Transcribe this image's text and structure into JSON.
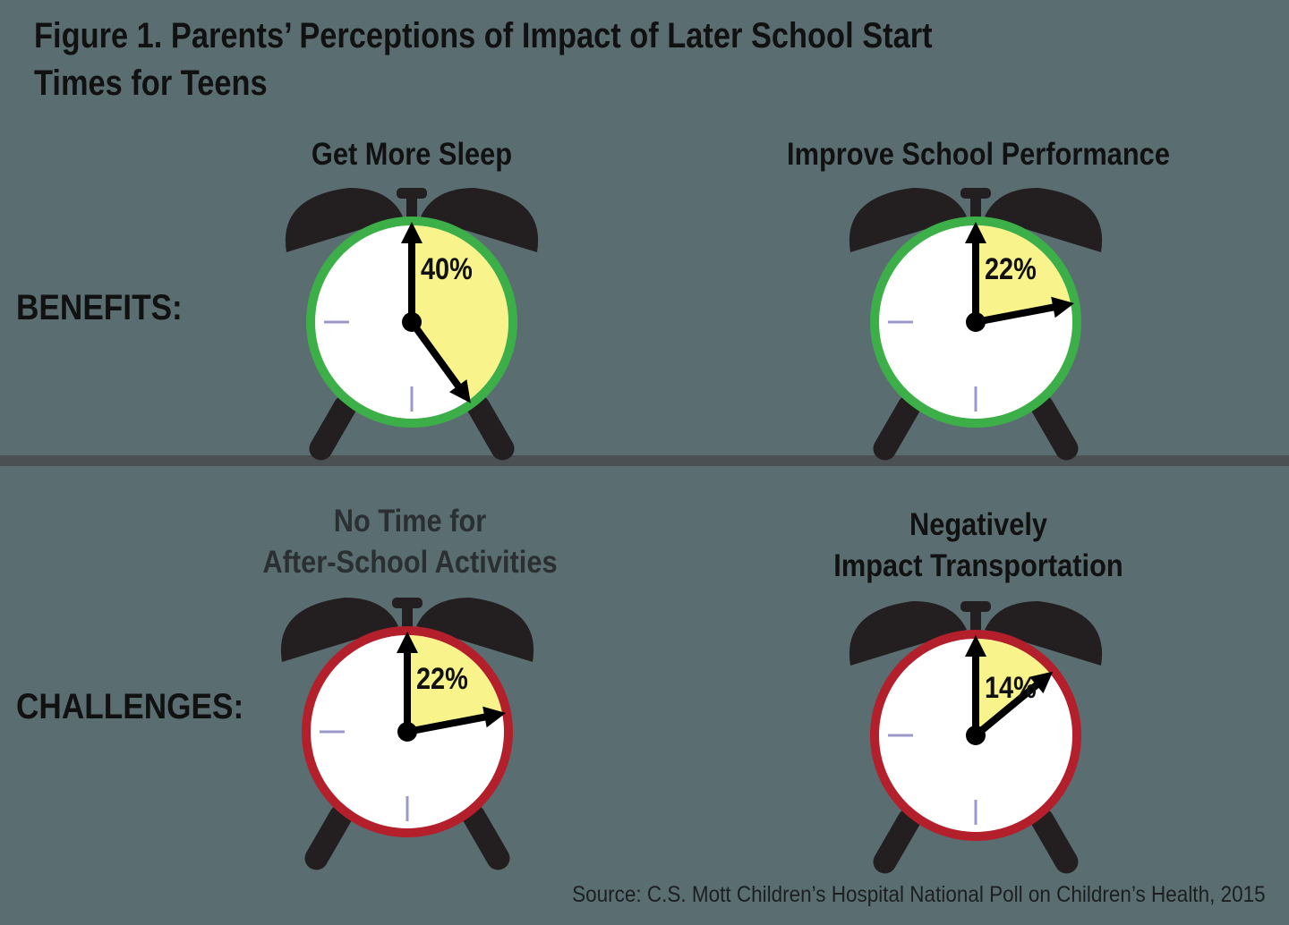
{
  "title_line1": "Figure 1. Parents’ Perceptions of Impact of Later School Start",
  "title_line2": "Times for Teens",
  "rows": {
    "benefits": "BENEFITS:",
    "challenges": "CHALLENGES:"
  },
  "source": "Source: C.S. Mott Children’s Hospital National Poll on Children’s Health, 2015",
  "colors": {
    "benefit_ring": "#3daf48",
    "challenge_ring": "#b31f2b",
    "fill": "#f8f38b",
    "bells": "#231f20",
    "face": "#ffffff",
    "tick": "#9a98c8",
    "background": "#5a6e72"
  },
  "chart_data": {
    "type": "pie",
    "title": "Figure 1. Parents’ Perceptions of Impact of Later School Start Times for Teens",
    "groups": [
      {
        "name": "BENEFITS:",
        "items": [
          {
            "title_lines": [
              "Get More Sleep"
            ],
            "value": 40,
            "label": "40%"
          },
          {
            "title_lines": [
              "Improve School Performance"
            ],
            "value": 22,
            "label": "22%"
          }
        ]
      },
      {
        "name": "CHALLENGES:",
        "items": [
          {
            "title_lines": [
              "No Time for",
              "After-School Activities"
            ],
            "value": 22,
            "label": "22%"
          },
          {
            "title_lines": [
              "Negatively",
              "Impact Transportation"
            ],
            "value": 14,
            "label": "14%"
          }
        ]
      }
    ]
  }
}
